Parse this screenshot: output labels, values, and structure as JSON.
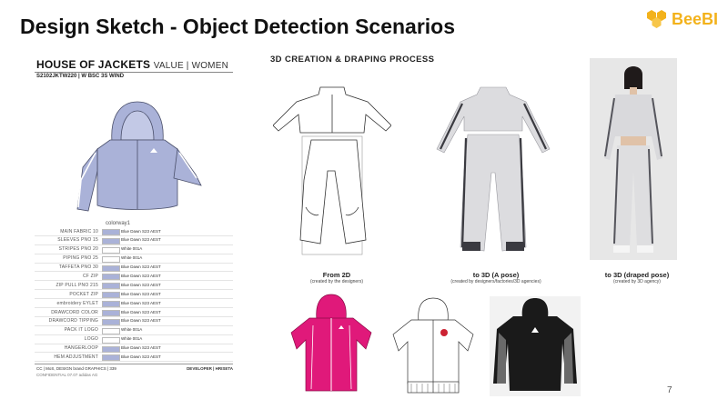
{
  "slide": {
    "title": "Design Sketch - Object Detection Scenarios",
    "logo_text": "BeeBI",
    "page_number": "7",
    "colors": {
      "accent": "#f3b21b",
      "lavender": "#aab2d8",
      "magenta": "#e0197a"
    }
  },
  "tech_pack": {
    "brand": "HOUSE OF JACKETS",
    "segment": "VALUE | WOMEN",
    "style_code": "S2102JKTW220 | W BSC 3S WIND",
    "colorway_label": "colorway1",
    "rows": [
      {
        "label": "MAIN FABRIC 10",
        "value": "Blue Dawn S23 AEST",
        "color": "#aab2d8"
      },
      {
        "label": "SLEEVES PNO 15",
        "value": "Blue Dawn S23 AEST",
        "color": "#aab2d8"
      },
      {
        "label": "STRIPES PNO 20",
        "value": "White 001A",
        "color": "#ffffff"
      },
      {
        "label": "PIPING PNO 25",
        "value": "White 001A",
        "color": "#ffffff"
      },
      {
        "label": "TAFFETA PNO 30",
        "value": "Blue Dawn S23 AEST",
        "color": "#aab2d8"
      },
      {
        "label": "CF ZIP",
        "value": "Blue Dawn S23 AEST",
        "color": "#aab2d8"
      },
      {
        "label": "ZIP PULL PNO 215",
        "value": "Blue Dawn S23 AEST",
        "color": "#aab2d8"
      },
      {
        "label": "POCKET ZIP",
        "value": "Blue Dawn S23 AEST",
        "color": "#aab2d8"
      },
      {
        "label": "embroidery EYLET",
        "value": "Blue Dawn S23 AEST",
        "color": "#aab2d8"
      },
      {
        "label": "DRAWCORD COLOR",
        "value": "Blue Dawn S23 AEST",
        "color": "#aab2d8"
      },
      {
        "label": "DRAWCORD TIPPING",
        "value": "Blue Dawn S23 AEST",
        "color": "#aab2d8"
      },
      {
        "label": "PACK IT LOGO",
        "value": "White 001A",
        "color": "#ffffff"
      },
      {
        "label": "LOGO",
        "value": "White 001A",
        "color": "#ffffff"
      },
      {
        "label": "HANGERLOOP",
        "value": "Blue Dawn S23 AEST",
        "color": "#aab2d8"
      },
      {
        "label": "HEM ADJUSTMENT",
        "value": "Blue Dawn S23 AEST",
        "color": "#aab2d8"
      }
    ],
    "footer_left": "CC | MoS, DESIGN brand GRAPHICS | 339",
    "footer_right": "DEVELOPER | HRISETA",
    "footer_left2": "CONFIDENTIAL 07.07 adidas AG"
  },
  "process": {
    "title": "3D CREATION & DRAPING PROCESS",
    "steps": [
      {
        "label": "From 2D",
        "sub": "(created by the designers)"
      },
      {
        "label": "to 3D (A pose)",
        "sub": "(created by designers/factories/3D agencies)"
      },
      {
        "label": "to 3D (draped pose)",
        "sub": "(created by 3D agency)"
      }
    ]
  }
}
